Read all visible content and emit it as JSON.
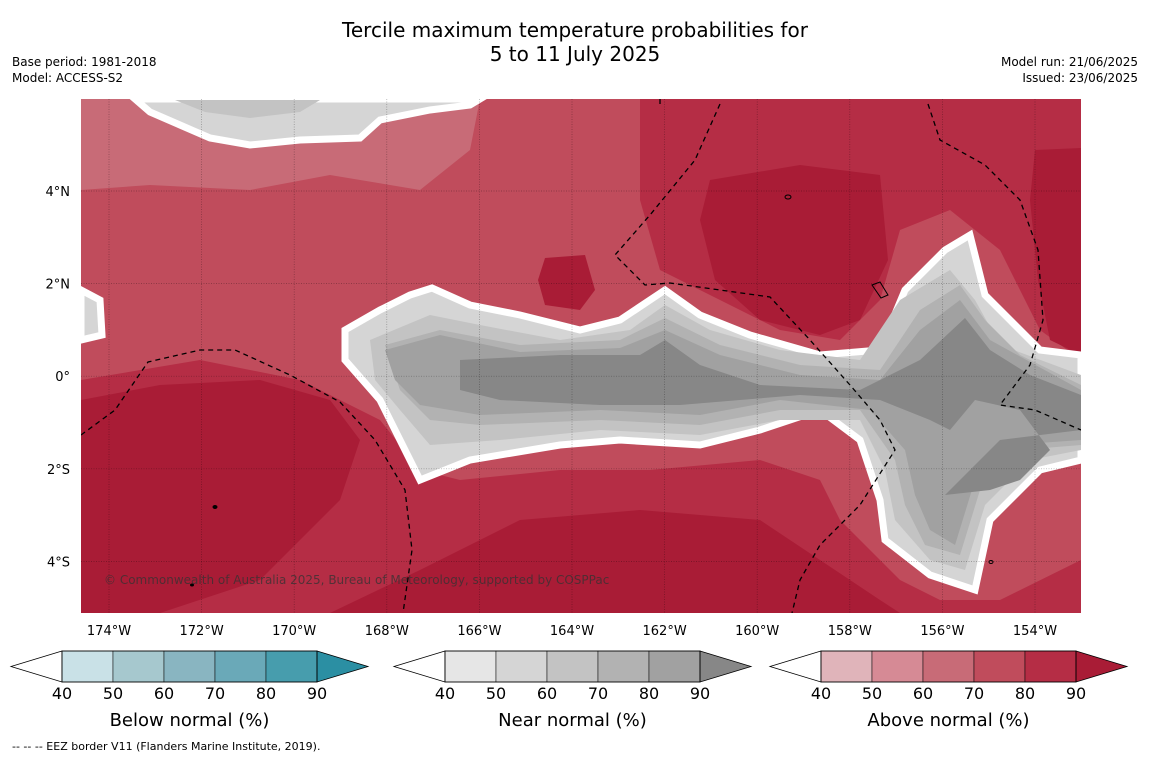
{
  "title": {
    "line1": "Tercile maximum temperature probabilities for",
    "line2": "5 to 11 July 2025"
  },
  "meta_left": {
    "base_period": "Base period: 1981-2018",
    "model": "Model: ACCESS-S2"
  },
  "meta_right": {
    "model_run": "Model run: 21/06/2025",
    "issued": "Issued: 23/06/2025"
  },
  "map": {
    "lon_labels": [
      "174°W",
      "172°W",
      "170°W",
      "168°W",
      "166°W",
      "164°W",
      "162°W",
      "160°W",
      "158°W",
      "156°W",
      "154°W"
    ],
    "lat_labels": [
      "4°N",
      "2°N",
      "0°",
      "2°S",
      "4°S"
    ],
    "copyright": "© Commonwealth of Australia 2025, Bureau of Meteorology, supported by COSPPac",
    "colors": {
      "above": [
        "#e0b4ba",
        "#d68a95",
        "#c86b77",
        "#c04c5c",
        "#b52d45",
        "#a91c36"
      ],
      "near": [
        "#e6e6e6",
        "#d5d5d5",
        "#c3c3c3",
        "#b2b2b2",
        "#a1a1a1",
        "#878787"
      ],
      "below": [
        "#c9e1e7",
        "#a6c8ce",
        "#89b5c1",
        "#6aa9b8",
        "#479dad",
        "#2b8fa3"
      ]
    }
  },
  "colorbars": [
    {
      "name": "below",
      "title": "Below normal (%)",
      "ticks": [
        "40",
        "50",
        "60",
        "70",
        "80",
        "90"
      ]
    },
    {
      "name": "near",
      "title": "Near normal (%)",
      "ticks": [
        "40",
        "50",
        "60",
        "70",
        "80",
        "90"
      ]
    },
    {
      "name": "above",
      "title": "Above normal (%)",
      "ticks": [
        "40",
        "50",
        "60",
        "70",
        "80",
        "90"
      ]
    }
  ],
  "footnote": "--  --  -- EEZ border V11 (Flanders Marine Institute, 2019)."
}
